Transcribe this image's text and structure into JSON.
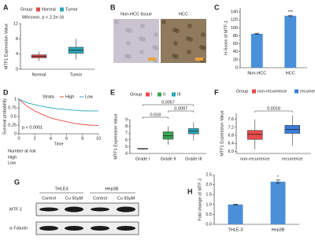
{
  "chart_data": [
    {
      "panel": "A",
      "type": "box",
      "legend_title": "Group",
      "legend": [
        "Normal",
        "Tumor"
      ],
      "annotation": "Wilcoxon, p < 2.2e-16",
      "ylabel": "MTF1 Expression Value",
      "categories": [
        "Normal",
        "Tumor"
      ],
      "colors": [
        "#e84a4a",
        "#2aa7b8"
      ],
      "boxes": [
        {
          "min": 2.2,
          "q1": 3.0,
          "median": 3.4,
          "q3": 3.8,
          "max": 4.6
        },
        {
          "min": 2.5,
          "q1": 4.2,
          "median": 5.0,
          "q3": 5.8,
          "max": 8.0
        }
      ],
      "ylim": [
        0,
        12
      ],
      "yticks": [
        0,
        4,
        8,
        12
      ]
    },
    {
      "panel": "B",
      "type": "image",
      "images": [
        {
          "label": "Non-HCC tissue",
          "color": "#c9c4cf"
        },
        {
          "label": "HCC",
          "color": "#8f7a5e"
        }
      ]
    },
    {
      "panel": "C",
      "type": "bar",
      "ylabel": "H-Score of MTF-1",
      "categories": [
        "Non-HCC",
        "HCC"
      ],
      "values": [
        85,
        130
      ],
      "errors": [
        1.5,
        1.5
      ],
      "color": "#4a90d9",
      "significance": {
        "category": "HCC",
        "label": "***"
      },
      "ylim": [
        0,
        150
      ],
      "yticks": [
        0,
        20,
        40,
        60,
        80,
        100,
        120,
        140
      ]
    },
    {
      "panel": "D",
      "type": "line",
      "legend_title": "Strata",
      "annotation": "p < 0.0001",
      "ylabel": "Survival probability",
      "xlabel": "Time",
      "table_title": "Number at risk",
      "x": [
        0,
        1,
        2,
        3,
        4,
        5,
        6,
        7,
        8,
        9,
        10
      ],
      "series": [
        {
          "name": "High",
          "color": "#e84a4a",
          "values": [
            1,
            0.8,
            0.66,
            0.55,
            0.46,
            0.4,
            0.35,
            0.3,
            0.27,
            0.25,
            0.24
          ]
        },
        {
          "name": "Low",
          "color": "#2aa7b8",
          "values": [
            1,
            0.9,
            0.84,
            0.79,
            0.75,
            0.72,
            0.7,
            0.68,
            0.66,
            0.66,
            0.66
          ]
        }
      ],
      "xlim": [
        0,
        10
      ],
      "xticks": [
        0,
        2,
        4,
        6,
        8,
        10
      ],
      "ylim": [
        0,
        1
      ],
      "yticks": [
        0,
        0.25,
        0.5,
        0.75,
        1
      ]
    },
    {
      "panel": "E",
      "type": "box",
      "legend_title": "Group",
      "legend": [
        "I",
        "II",
        "III"
      ],
      "ylabel": "MTF1 Expression Value",
      "categories": [
        "Grade I",
        "Grade II",
        "Grade III"
      ],
      "colors": [
        "#e84a4a",
        "#3aa655",
        "#2aa7b8"
      ],
      "boxes": [
        {
          "min": 4.6,
          "q1": 4.65,
          "median": 4.7,
          "q3": 4.75,
          "max": 4.8
        },
        {
          "min": 5.3,
          "q1": 6.1,
          "median": 6.6,
          "q3": 7.2,
          "max": 8.0
        },
        {
          "min": 5.9,
          "q1": 6.9,
          "median": 7.3,
          "q3": 7.7,
          "max": 8.6
        }
      ],
      "comparisons": [
        {
          "groups": [
            "Grade I",
            "Grade II"
          ],
          "p": 0.018
        },
        {
          "groups": [
            "Grade II",
            "Grade III"
          ],
          "p": 0.0097
        },
        {
          "groups": [
            "Grade I",
            "Grade III"
          ],
          "p": 0.0057
        }
      ],
      "ylim": [
        4,
        9
      ],
      "yticks": [
        4,
        5,
        6,
        7,
        8,
        9
      ]
    },
    {
      "panel": "F",
      "type": "box",
      "legend_title": "Group",
      "legend": [
        "non-recurrence",
        "recurrence"
      ],
      "ylabel": "MTF1 Expression Value",
      "categories": [
        "non-recurrence",
        "recurrence"
      ],
      "colors": [
        "#e84a4a",
        "#3b7dd8"
      ],
      "boxes": [
        {
          "min": 6.1,
          "q1": 6.6,
          "median": 6.85,
          "q3": 7.05,
          "max": 7.6
        },
        {
          "min": 6.3,
          "q1": 6.9,
          "median": 7.1,
          "q3": 7.3,
          "max": 7.8
        }
      ],
      "comparisons": [
        {
          "groups": [
            "non-recurrence",
            "recurrence"
          ],
          "p": 0.0018
        }
      ],
      "ylim": [
        5.9,
        7.9
      ],
      "yticks": [
        {
          "value": 6,
          "label": "6.0"
        },
        6.4,
        6.8,
        7.2,
        7.6
      ]
    },
    {
      "panel": "G",
      "type": "blot",
      "cell_lines": [
        "THLE3",
        "Hep3B"
      ],
      "treatments": [
        "Control",
        "Cu 50μM",
        "Control",
        "Cu 50μM"
      ],
      "proteins": [
        "MTF-1",
        "α-Tubulin"
      ]
    },
    {
      "panel": "H",
      "type": "bar",
      "ylabel": "Fold change of MTF-1",
      "categories": [
        "THLE-3",
        "Hep3B"
      ],
      "values": [
        1.0,
        2.15
      ],
      "errors": [
        0.02,
        0.08
      ],
      "color": "#4a90d9",
      "significance": {
        "category": "Hep3B",
        "label": "*"
      },
      "ylim": [
        0,
        2.5
      ],
      "yticks": [
        {
          "value": 0,
          "label": "0.0"
        },
        0.5,
        {
          "value": 1,
          "label": "1.0"
        },
        1.5,
        {
          "value": 2,
          "label": "2.0"
        },
        2.5
      ]
    }
  ]
}
